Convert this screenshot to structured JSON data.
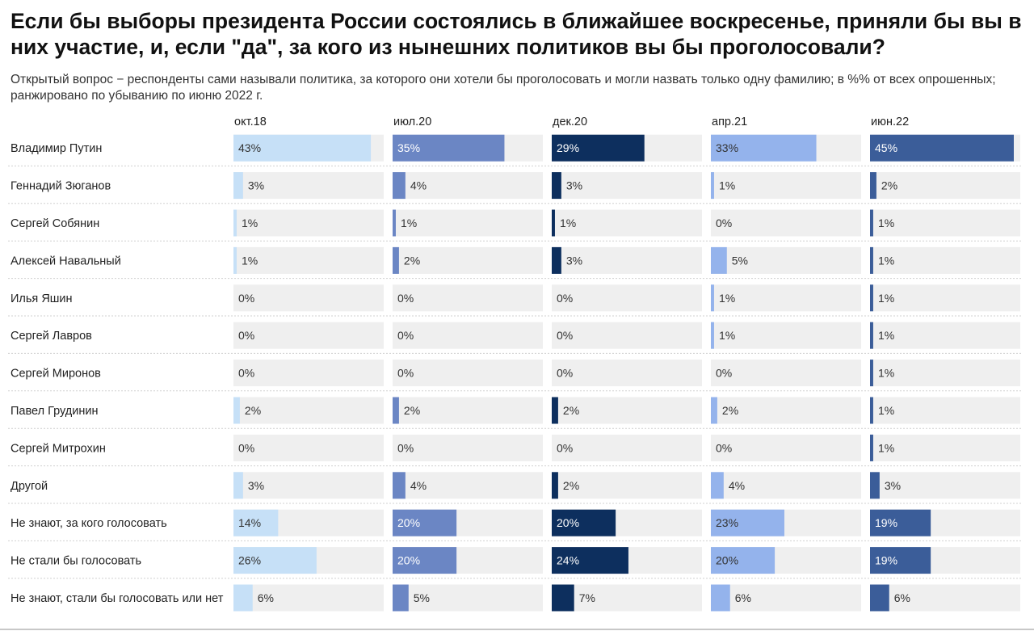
{
  "title": "Если бы выборы президента России состоялись в ближайшее воскресенье, приняли бы вы в них участие, и, если \"да\", за кого из нынешних политиков вы бы проголосовали?",
  "subtitle": "Открытый вопрос − респонденты сами называли политика, за которого они хотели бы проголосовать и могли назвать только одну фамилию; в %% от всех опрошенных; ранжировано по убыванию по июню 2022 г.",
  "chart_data": {
    "type": "bar",
    "orientation": "horizontal",
    "layout": "small-multiples",
    "title": "Если бы выборы президента России состоялись в ближайшее воскресенье, приняли бы вы в них участие, и, если \"да\", за кого из нынешних политиков вы бы проголосовали?",
    "subtitle": "Открытый вопрос − респонденты сами называли политика, за которого они хотели бы проголосовать и могли назвать только одну фамилию; в %% от всех опрошенных; ранжировано по убыванию по июню 2022 г.",
    "unit": "%",
    "xlim": [
      0,
      45
    ],
    "categories": [
      "Владимир Путин",
      "Геннадий Зюганов",
      "Сергей Собянин",
      "Алексей Навальный",
      "Илья Яшин",
      "Сергей Лавров",
      "Сергей Миронов",
      "Павел Грудинин",
      "Сергей Митрохин",
      "Другой",
      "Не знают, за кого голосовать",
      "Не стали бы голосовать",
      "Не знают, стали бы голосовать или нет"
    ],
    "series": [
      {
        "name": "окт.18",
        "color": "#c6e0f7",
        "values": [
          43,
          3,
          1,
          1,
          0,
          0,
          0,
          2,
          0,
          3,
          14,
          26,
          6
        ]
      },
      {
        "name": "июл.20",
        "color": "#6b86c4",
        "values": [
          35,
          4,
          1,
          2,
          0,
          0,
          0,
          2,
          0,
          4,
          20,
          20,
          5
        ]
      },
      {
        "name": "дек.20",
        "color": "#0d2f5e",
        "values": [
          29,
          3,
          1,
          3,
          0,
          0,
          0,
          2,
          0,
          2,
          20,
          24,
          7
        ]
      },
      {
        "name": "апр.21",
        "color": "#94b3ec",
        "values": [
          33,
          1,
          0,
          5,
          1,
          1,
          0,
          2,
          0,
          4,
          23,
          20,
          6
        ]
      },
      {
        "name": "июн.22",
        "color": "#3b5d99",
        "values": [
          45,
          2,
          1,
          1,
          1,
          1,
          1,
          1,
          1,
          3,
          19,
          19,
          6
        ]
      }
    ],
    "label_colors": {
      "dark": "#ffffff",
      "light": "#333333"
    },
    "track_color": "#efefef",
    "separator_color": "#d0d0d0"
  }
}
